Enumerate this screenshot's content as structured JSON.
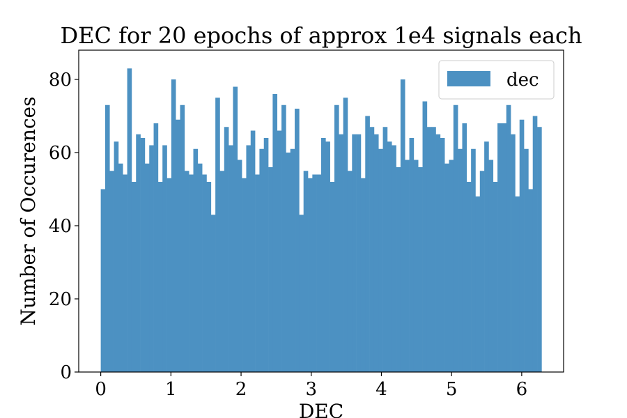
{
  "chart_data": {
    "type": "bar",
    "title": "DEC for 20 epochs of approx 1e4 signals each",
    "xlabel": "DEC",
    "ylabel": "Number of Occurences",
    "xlim": [
      -0.314,
      6.597
    ],
    "ylim": [
      0,
      88
    ],
    "x_range": [
      0,
      6.283
    ],
    "xticks": [
      0,
      1,
      2,
      3,
      4,
      5,
      6
    ],
    "yticks": [
      0,
      20,
      40,
      60,
      80
    ],
    "grid": false,
    "legend_position": "top-right",
    "series": [
      {
        "name": "dec",
        "color": "#4c91c2",
        "values": [
          50,
          73,
          55,
          63,
          57,
          54,
          83,
          52,
          65,
          64,
          57,
          62,
          68,
          52,
          62,
          53,
          80,
          69,
          73,
          55,
          54,
          61,
          57,
          54,
          52,
          43,
          75,
          55,
          67,
          62,
          78,
          58,
          53,
          62,
          66,
          54,
          61,
          64,
          56,
          76,
          66,
          73,
          60,
          61,
          72,
          43,
          55,
          53,
          54,
          54,
          64,
          63,
          52,
          73,
          65,
          75,
          55,
          65,
          65,
          53,
          70,
          67,
          65,
          61,
          67,
          63,
          62,
          56,
          80,
          58,
          64,
          58,
          56,
          74,
          67,
          67,
          65,
          64,
          57,
          58,
          73,
          61,
          68,
          52,
          61,
          48,
          55,
          63,
          58,
          52,
          68,
          68,
          73,
          65,
          48,
          69,
          61,
          50,
          70,
          67
        ]
      }
    ]
  }
}
